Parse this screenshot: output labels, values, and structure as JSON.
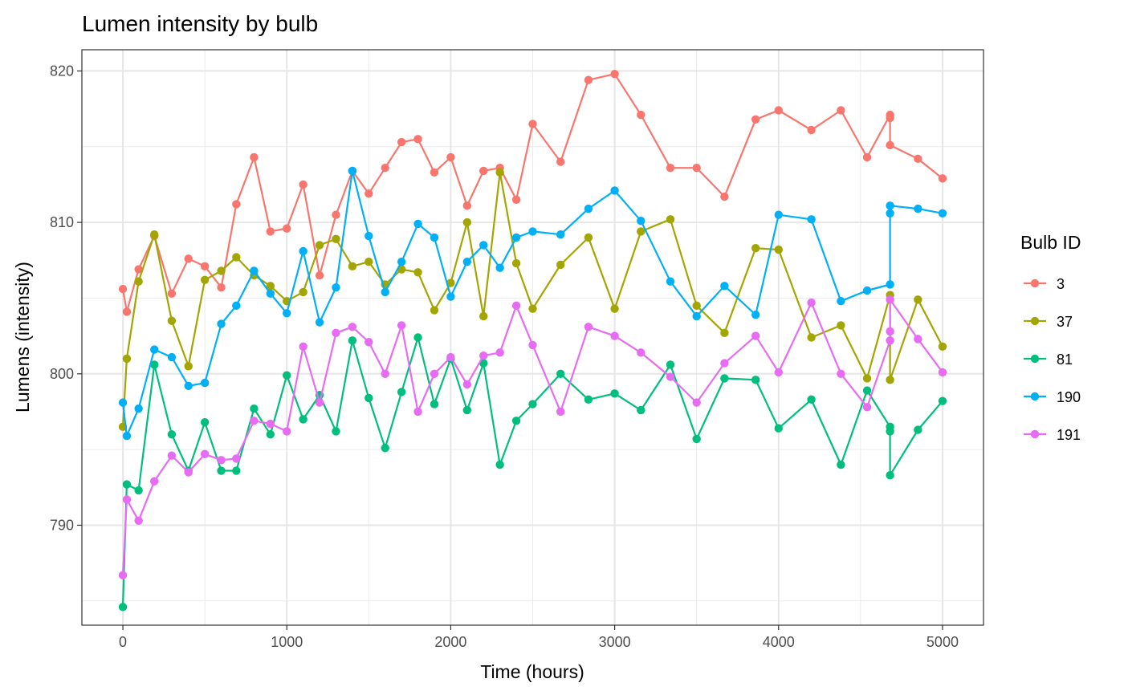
{
  "chart_data": {
    "type": "line",
    "title": "Lumen intensity by bulb",
    "xlabel": "Time (hours)",
    "ylabel": "Lumens (intensity)",
    "xlim": [
      -250,
      5250
    ],
    "ylim": [
      783.4,
      821.4
    ],
    "x_ticks": [
      0,
      1000,
      2000,
      3000,
      4000,
      5000
    ],
    "x_tick_labels": [
      "0",
      "1000",
      "2000",
      "3000",
      "4000",
      "5000"
    ],
    "y_ticks": [
      790,
      800,
      810,
      820
    ],
    "y_tick_labels": [
      "790",
      "800",
      "810",
      "820"
    ],
    "grid": true,
    "legend": {
      "title": "Bulb ID",
      "placement": "right"
    },
    "series": [
      {
        "name": "3",
        "color": "#F8766D",
        "x": [
          0,
          24,
          96,
          192,
          298,
          400,
          500,
          600,
          692,
          800,
          900,
          1000,
          1100,
          1200,
          1300,
          1400,
          1500,
          1600,
          1700,
          1800,
          1900,
          2000,
          2100,
          2200,
          2300,
          2400,
          2500,
          2670,
          2840,
          3000,
          3160,
          3340,
          3500,
          3670,
          3860,
          4000,
          4200,
          4380,
          4540,
          4680,
          4680,
          4680,
          4850,
          5000
        ],
        "y": [
          805.6,
          804.1,
          806.9,
          809.1,
          805.3,
          807.6,
          807.1,
          805.7,
          811.2,
          814.3,
          809.4,
          809.6,
          812.5,
          806.5,
          810.5,
          813.4,
          811.9,
          813.6,
          815.3,
          815.5,
          813.3,
          814.3,
          811.1,
          813.4,
          813.6,
          811.5,
          816.5,
          814.0,
          819.4,
          819.8,
          817.1,
          813.6,
          813.6,
          811.7,
          816.8,
          817.4,
          816.1,
          817.4,
          814.3,
          817.1,
          816.9,
          815.1,
          814.2,
          812.9
        ]
      },
      {
        "name": "37",
        "color": "#A3A500",
        "x": [
          0,
          24,
          96,
          192,
          298,
          400,
          500,
          600,
          692,
          800,
          900,
          1000,
          1100,
          1200,
          1300,
          1400,
          1500,
          1600,
          1700,
          1800,
          1900,
          2000,
          2100,
          2200,
          2300,
          2400,
          2500,
          2670,
          2840,
          3000,
          3160,
          3340,
          3500,
          3670,
          3860,
          4000,
          4200,
          4380,
          4540,
          4680,
          4680,
          4850,
          5000
        ],
        "y": [
          796.5,
          801.0,
          806.1,
          809.2,
          803.5,
          800.5,
          806.2,
          806.8,
          807.7,
          806.5,
          805.8,
          804.8,
          805.4,
          808.5,
          808.9,
          807.1,
          807.4,
          805.9,
          806.9,
          806.7,
          804.2,
          806.0,
          810.0,
          803.8,
          813.3,
          807.3,
          804.3,
          807.2,
          809.0,
          804.3,
          809.4,
          810.2,
          804.5,
          802.7,
          808.3,
          808.2,
          802.4,
          803.2,
          799.7,
          805.2,
          799.6,
          804.9,
          801.8
        ]
      },
      {
        "name": "81",
        "color": "#00BF7D",
        "x": [
          0,
          24,
          96,
          192,
          298,
          400,
          500,
          600,
          692,
          800,
          900,
          1000,
          1100,
          1200,
          1300,
          1400,
          1500,
          1600,
          1700,
          1800,
          1900,
          2000,
          2100,
          2200,
          2300,
          2400,
          2500,
          2670,
          2840,
          3000,
          3160,
          3340,
          3500,
          3670,
          3860,
          4000,
          4200,
          4380,
          4540,
          4680,
          4680,
          4680,
          4850,
          5000
        ],
        "y": [
          784.6,
          792.7,
          792.3,
          800.6,
          796.0,
          793.6,
          796.8,
          793.6,
          793.6,
          797.7,
          796.0,
          799.9,
          797.0,
          798.6,
          796.2,
          802.2,
          798.4,
          795.1,
          798.8,
          802.4,
          798.0,
          801.0,
          797.6,
          800.7,
          794.0,
          796.9,
          798.0,
          800.0,
          798.3,
          798.7,
          797.6,
          800.6,
          795.7,
          799.7,
          799.6,
          796.4,
          798.3,
          794.0,
          798.9,
          796.5,
          796.2,
          793.3,
          796.3,
          798.2
        ]
      },
      {
        "name": "190",
        "color": "#00B0F6",
        "x": [
          0,
          24,
          96,
          192,
          298,
          400,
          500,
          600,
          692,
          800,
          900,
          1000,
          1100,
          1200,
          1300,
          1400,
          1500,
          1600,
          1700,
          1800,
          1900,
          2000,
          2100,
          2200,
          2300,
          2400,
          2500,
          2670,
          2840,
          3000,
          3160,
          3340,
          3500,
          3670,
          3860,
          4000,
          4200,
          4380,
          4540,
          4680,
          4680,
          4680,
          4850,
          5000
        ],
        "y": [
          798.1,
          795.9,
          797.7,
          801.6,
          801.1,
          799.2,
          799.4,
          803.3,
          804.5,
          806.8,
          805.3,
          804.0,
          808.1,
          803.4,
          805.7,
          813.4,
          809.1,
          805.4,
          807.4,
          809.9,
          809.0,
          805.1,
          807.4,
          808.5,
          807.0,
          809.0,
          809.4,
          809.2,
          810.9,
          812.1,
          810.1,
          806.1,
          803.8,
          805.8,
          803.9,
          810.5,
          810.2,
          804.8,
          805.5,
          805.9,
          810.6,
          811.1,
          810.9,
          810.6
        ]
      },
      {
        "name": "191",
        "color": "#E76BF3",
        "x": [
          0,
          24,
          96,
          192,
          298,
          400,
          500,
          600,
          692,
          800,
          900,
          1000,
          1100,
          1200,
          1300,
          1400,
          1500,
          1600,
          1700,
          1800,
          1900,
          2000,
          2100,
          2200,
          2300,
          2400,
          2500,
          2670,
          2840,
          3000,
          3160,
          3340,
          3500,
          3670,
          3860,
          4000,
          4200,
          4380,
          4540,
          4680,
          4680,
          4680,
          4850,
          5000
        ],
        "y": [
          786.7,
          791.7,
          790.3,
          792.9,
          794.6,
          793.5,
          794.7,
          794.3,
          794.4,
          796.9,
          796.7,
          796.2,
          801.8,
          798.1,
          802.7,
          803.1,
          802.1,
          800.0,
          803.2,
          797.5,
          800.0,
          801.1,
          799.3,
          801.2,
          801.4,
          804.5,
          801.9,
          797.5,
          803.1,
          802.5,
          801.4,
          799.8,
          798.1,
          800.7,
          802.5,
          800.1,
          804.7,
          800.0,
          797.8,
          802.2,
          802.8,
          804.9,
          802.3,
          800.1
        ]
      }
    ]
  }
}
